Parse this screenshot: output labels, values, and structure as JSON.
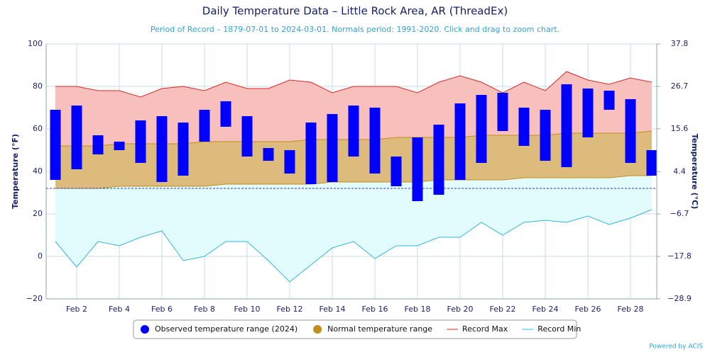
{
  "chart_data": {
    "type": "range",
    "title": "Daily Temperature Data – Little Rock Area, AR (ThreadEx)",
    "subtitle": "Period of Record – 1879-07-01 to 2024-03-01. Normals period: 1991-2020. Click and drag to zoom chart.",
    "ylabel": "Temperature (°F)",
    "y2label": "Temperature (°C)",
    "credit": "Powered by ACIS",
    "categories": [
      null,
      "Feb 2",
      null,
      "Feb 4",
      null,
      "Feb 6",
      null,
      "Feb 8",
      null,
      "Feb 10",
      null,
      "Feb 12",
      null,
      "Feb 14",
      null,
      "Feb 16",
      null,
      "Feb 18",
      null,
      "Feb 20",
      null,
      "Feb 22",
      null,
      "Feb 24",
      null,
      "Feb 26",
      null,
      "Feb 28",
      null
    ],
    "ylim": [
      -20,
      100
    ],
    "yticks": [
      {
        "value": -20,
        "label": "−20"
      },
      0,
      20,
      40,
      60,
      80,
      100
    ],
    "y2lim": [
      -28.9,
      37.8
    ],
    "y2ticks": [
      {
        "value": -28.9,
        "label": "−28.9"
      },
      {
        "value": -17.8,
        "label": "−17.8"
      },
      {
        "value": -6.7,
        "label": "−6.7"
      },
      4.4,
      15.6,
      26.7,
      37.8
    ],
    "freezing_line": 32,
    "grid": true,
    "series": [
      {
        "name": "Observed temperature range (2024)",
        "color": "#0000ff",
        "low": [
          36,
          41,
          48,
          50,
          44,
          35,
          38,
          54,
          61,
          47,
          45,
          39,
          34,
          35,
          47,
          39,
          33,
          26,
          29,
          36,
          44,
          59,
          52,
          45,
          42,
          56,
          69,
          44,
          38
        ],
        "high": [
          69,
          71,
          57,
          54,
          64,
          66,
          63,
          69,
          73,
          66,
          51,
          50,
          63,
          67,
          71,
          70,
          47,
          56,
          62,
          72,
          76,
          77,
          70,
          69,
          81,
          79,
          78,
          74,
          50
        ]
      },
      {
        "name": "Normal temperature range",
        "color": "#c08e1a",
        "fill": "#dcbb7c",
        "low": [
          32,
          32,
          32,
          33,
          33,
          33,
          33,
          33,
          34,
          34,
          34,
          34,
          34,
          35,
          35,
          35,
          35,
          35,
          36,
          36,
          36,
          36,
          37,
          37,
          37,
          37,
          37,
          38,
          38
        ],
        "high": [
          52,
          52,
          52,
          53,
          53,
          53,
          53,
          54,
          54,
          54,
          54,
          54,
          55,
          55,
          55,
          55,
          56,
          56,
          56,
          56,
          57,
          57,
          57,
          57,
          58,
          58,
          58,
          58,
          59
        ]
      },
      {
        "name": "Record Max",
        "color": "#d42a22",
        "fill": "#f8c0bd",
        "values": [
          80,
          80,
          78,
          78,
          75,
          79,
          80,
          78,
          82,
          79,
          79,
          83,
          82,
          77,
          80,
          80,
          80,
          77,
          82,
          85,
          82,
          77,
          82,
          78,
          87,
          83,
          81,
          84,
          82
        ]
      },
      {
        "name": "Record Min",
        "color": "#35b4dc",
        "fill": "#e2fcfd",
        "values": [
          7,
          -5,
          7,
          5,
          9,
          12,
          -2,
          0,
          7,
          7,
          -2,
          -12,
          -4,
          4,
          7,
          -1,
          5,
          5,
          9,
          9,
          16,
          10,
          16,
          17,
          16,
          19,
          15,
          18,
          22
        ]
      }
    ]
  }
}
